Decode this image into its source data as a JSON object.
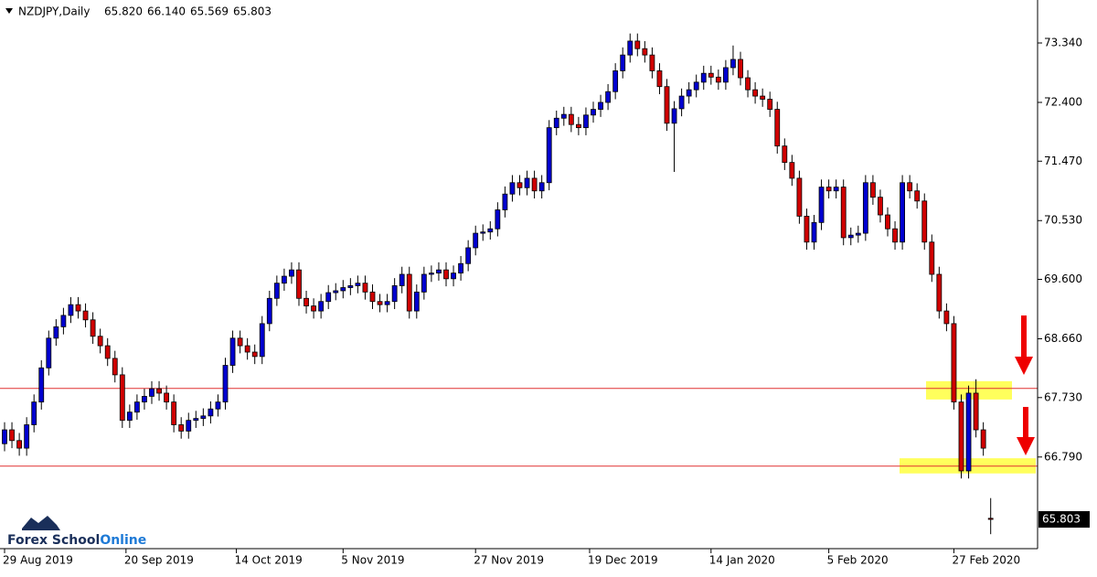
{
  "chart_data": {
    "type": "candlestick",
    "title": "NZDJPY,Daily",
    "ohlc_labels": [
      "65.820",
      "66.140",
      "65.569",
      "65.803"
    ],
    "ylim": [
      65.34,
      74.02
    ],
    "yticks": [
      {
        "value": 73.34,
        "label": "73.340"
      },
      {
        "value": 72.4,
        "label": "72.400"
      },
      {
        "value": 71.47,
        "label": "71.470"
      },
      {
        "value": 70.53,
        "label": "70.530"
      },
      {
        "value": 69.6,
        "label": "69.600"
      },
      {
        "value": 68.66,
        "label": "68.660"
      },
      {
        "value": 67.73,
        "label": "67.730"
      },
      {
        "value": 66.79,
        "label": "66.790"
      }
    ],
    "xticks": [
      {
        "value": 0,
        "label": "29 Aug 2019"
      },
      {
        "value": 16.5,
        "label": "20 Sep 2019"
      },
      {
        "value": 31.5,
        "label": "14 Oct 2019"
      },
      {
        "value": 46,
        "label": "5 Nov 2019"
      },
      {
        "value": 64,
        "label": "27 Nov 2019"
      },
      {
        "value": 79.5,
        "label": "19 Dec 2019"
      },
      {
        "value": 96,
        "label": "14 Jan 2020"
      },
      {
        "value": 112,
        "label": "5 Feb 2020"
      },
      {
        "value": 129,
        "label": "27 Feb 2020"
      }
    ],
    "up_color": "#0000d0",
    "down_color": "#d00000",
    "hlines": [
      67.875,
      66.645
    ],
    "hline_color": "#e03030",
    "zones": [
      [
        67.7,
        67.99
      ],
      [
        66.53,
        66.77
      ]
    ],
    "zone_color": "#ffff40",
    "logo": [
      "Forex School",
      "Online"
    ],
    "open": [
      67.0,
      67.22,
      67.05,
      66.93,
      67.3,
      67.66,
      68.2,
      68.67,
      68.85,
      69.03,
      69.2,
      69.1,
      68.96,
      68.7,
      68.55,
      68.35,
      68.09,
      67.37,
      67.5,
      67.66,
      67.75,
      67.87,
      67.8,
      67.66,
      67.3,
      67.2,
      67.37,
      67.4,
      67.44,
      67.55,
      67.66,
      68.24,
      68.67,
      68.55,
      68.45,
      68.38,
      68.9,
      69.3,
      69.54,
      69.65,
      69.75,
      69.3,
      69.18,
      69.1,
      69.25,
      69.39,
      69.42,
      69.47,
      69.5,
      69.54,
      69.4,
      69.25,
      69.2,
      69.25,
      69.5,
      69.68,
      69.1,
      69.4,
      69.68,
      69.7,
      69.75,
      69.61,
      69.7,
      69.85,
      70.1,
      70.33,
      70.35,
      70.4,
      70.7,
      70.95,
      71.13,
      71.05,
      71.2,
      71.0,
      71.13,
      72.0,
      72.15,
      72.21,
      72.05,
      72.0,
      72.2,
      72.29,
      72.4,
      72.57,
      72.9,
      73.15,
      73.37,
      73.25,
      73.15,
      72.9,
      72.65,
      72.07,
      72.3,
      72.5,
      72.6,
      72.72,
      72.86,
      72.8,
      72.72,
      72.95,
      73.08,
      72.79,
      72.6,
      72.5,
      72.45,
      72.29,
      71.71,
      71.45,
      71.2,
      70.6,
      70.19,
      70.5,
      71.06,
      71.0,
      71.06,
      70.26,
      70.3,
      70.33,
      71.13,
      70.9,
      70.62,
      70.4,
      70.19,
      71.13,
      71.0,
      70.84,
      70.19,
      69.68,
      69.1,
      68.9,
      67.66,
      66.57,
      67.8,
      67.22,
      65.82
    ],
    "high": [
      67.34,
      67.34,
      67.17,
      67.42,
      67.78,
      68.32,
      68.79,
      68.97,
      69.15,
      69.32,
      69.32,
      69.22,
      69.08,
      68.82,
      68.67,
      68.47,
      68.21,
      67.62,
      67.78,
      67.87,
      67.99,
      67.99,
      67.92,
      67.78,
      67.42,
      67.49,
      67.52,
      67.56,
      67.67,
      67.78,
      68.36,
      68.79,
      68.79,
      68.67,
      68.57,
      69.02,
      69.42,
      69.66,
      69.77,
      69.87,
      69.87,
      69.42,
      69.3,
      69.37,
      69.51,
      69.54,
      69.59,
      69.62,
      69.66,
      69.66,
      69.52,
      69.37,
      69.37,
      69.62,
      69.8,
      69.8,
      69.52,
      69.8,
      69.82,
      69.87,
      69.87,
      69.82,
      69.97,
      70.22,
      70.45,
      70.47,
      70.52,
      70.82,
      71.07,
      71.25,
      71.25,
      71.32,
      71.32,
      71.25,
      72.12,
      72.27,
      72.33,
      72.33,
      72.17,
      72.32,
      72.41,
      72.52,
      72.69,
      73.02,
      73.27,
      73.49,
      73.49,
      73.37,
      73.27,
      73.02,
      72.77,
      72.42,
      72.62,
      72.72,
      72.84,
      72.98,
      72.98,
      72.92,
      73.07,
      73.3,
      73.2,
      72.91,
      72.72,
      72.62,
      72.57,
      72.41,
      71.83,
      71.57,
      71.32,
      70.72,
      70.62,
      71.18,
      71.18,
      71.18,
      71.18,
      70.42,
      70.45,
      71.25,
      71.25,
      71.02,
      70.74,
      70.52,
      71.25,
      71.25,
      71.12,
      70.96,
      70.31,
      69.8,
      69.22,
      69.02,
      67.78,
      67.92,
      68.02,
      67.34,
      66.14
    ],
    "low": [
      66.88,
      66.93,
      66.81,
      66.81,
      67.18,
      67.54,
      68.08,
      68.55,
      68.73,
      68.91,
      68.98,
      68.84,
      68.58,
      68.43,
      68.23,
      67.97,
      67.25,
      67.25,
      67.38,
      67.54,
      67.63,
      67.68,
      67.54,
      67.18,
      67.08,
      67.08,
      67.25,
      67.28,
      67.32,
      67.43,
      67.54,
      68.12,
      68.43,
      68.33,
      68.26,
      68.26,
      68.78,
      69.18,
      69.42,
      69.53,
      69.18,
      69.06,
      68.98,
      68.98,
      69.13,
      69.27,
      69.3,
      69.35,
      69.38,
      69.28,
      69.13,
      69.08,
      69.08,
      69.13,
      69.38,
      68.98,
      68.98,
      69.28,
      69.56,
      69.58,
      69.49,
      69.49,
      69.58,
      69.73,
      69.98,
      70.21,
      70.23,
      70.28,
      70.58,
      70.83,
      70.93,
      70.93,
      70.88,
      70.88,
      71.01,
      71.88,
      72.03,
      71.93,
      71.88,
      71.88,
      72.08,
      72.17,
      72.28,
      72.45,
      72.78,
      73.03,
      73.13,
      73.03,
      72.78,
      72.53,
      71.95,
      71.3,
      72.18,
      72.38,
      72.48,
      72.6,
      72.68,
      72.6,
      72.6,
      72.83,
      72.67,
      72.48,
      72.38,
      72.33,
      72.17,
      71.59,
      71.33,
      71.08,
      70.48,
      70.07,
      70.07,
      70.38,
      70.88,
      70.88,
      70.14,
      70.14,
      70.18,
      70.21,
      70.78,
      70.5,
      70.28,
      70.07,
      70.07,
      70.88,
      70.72,
      70.07,
      69.56,
      68.98,
      68.78,
      67.54,
      66.45,
      66.45,
      67.1,
      66.81,
      65.569
    ],
    "close": [
      67.22,
      67.05,
      66.93,
      67.3,
      67.66,
      68.2,
      68.67,
      68.85,
      69.03,
      69.2,
      69.1,
      68.96,
      68.7,
      68.55,
      68.35,
      68.09,
      67.37,
      67.5,
      67.66,
      67.75,
      67.87,
      67.8,
      67.66,
      67.3,
      67.2,
      67.37,
      67.4,
      67.44,
      67.55,
      67.66,
      68.24,
      68.67,
      68.55,
      68.45,
      68.38,
      68.9,
      69.3,
      69.54,
      69.65,
      69.75,
      69.3,
      69.18,
      69.1,
      69.25,
      69.39,
      69.42,
      69.47,
      69.5,
      69.54,
      69.4,
      69.25,
      69.2,
      69.25,
      69.5,
      69.68,
      69.1,
      69.4,
      69.68,
      69.7,
      69.75,
      69.61,
      69.7,
      69.85,
      70.1,
      70.33,
      70.35,
      70.4,
      70.7,
      70.95,
      71.13,
      71.05,
      71.2,
      71.0,
      71.13,
      72.0,
      72.15,
      72.21,
      72.05,
      72.0,
      72.2,
      72.29,
      72.4,
      72.57,
      72.9,
      73.15,
      73.37,
      73.25,
      73.15,
      72.9,
      72.65,
      72.07,
      72.3,
      72.5,
      72.6,
      72.72,
      72.86,
      72.8,
      72.72,
      72.95,
      73.08,
      72.79,
      72.6,
      72.5,
      72.45,
      72.29,
      71.71,
      71.45,
      71.2,
      70.6,
      70.19,
      70.5,
      71.06,
      71.0,
      71.06,
      70.26,
      70.3,
      70.33,
      71.13,
      70.9,
      70.62,
      70.4,
      70.19,
      71.13,
      71.0,
      70.84,
      70.19,
      69.68,
      69.1,
      68.9,
      67.66,
      66.57,
      67.8,
      67.22,
      66.93,
      65.803
    ]
  }
}
